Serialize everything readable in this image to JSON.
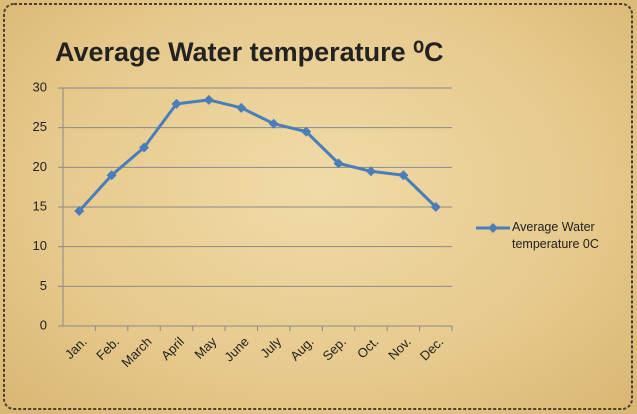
{
  "chart_data": {
    "type": "line",
    "title": "Average Water temperature ⁰C",
    "categories": [
      "Jan.",
      "Feb.",
      "March",
      "April",
      "May",
      "June",
      "July",
      "Aug.",
      "Sep.",
      "Oct.",
      "Nov.",
      "Dec."
    ],
    "series": [
      {
        "name": "Average Water temperature 0C",
        "color": "#4a7ebb",
        "values": [
          14.5,
          19,
          22.5,
          28,
          28.5,
          27.5,
          25.5,
          24.5,
          20.5,
          19.5,
          19,
          15
        ]
      }
    ],
    "ylim": [
      0,
      30
    ],
    "yticks": [
      0,
      5,
      10,
      15,
      20,
      25,
      30
    ],
    "grid": true,
    "legend": "right"
  }
}
